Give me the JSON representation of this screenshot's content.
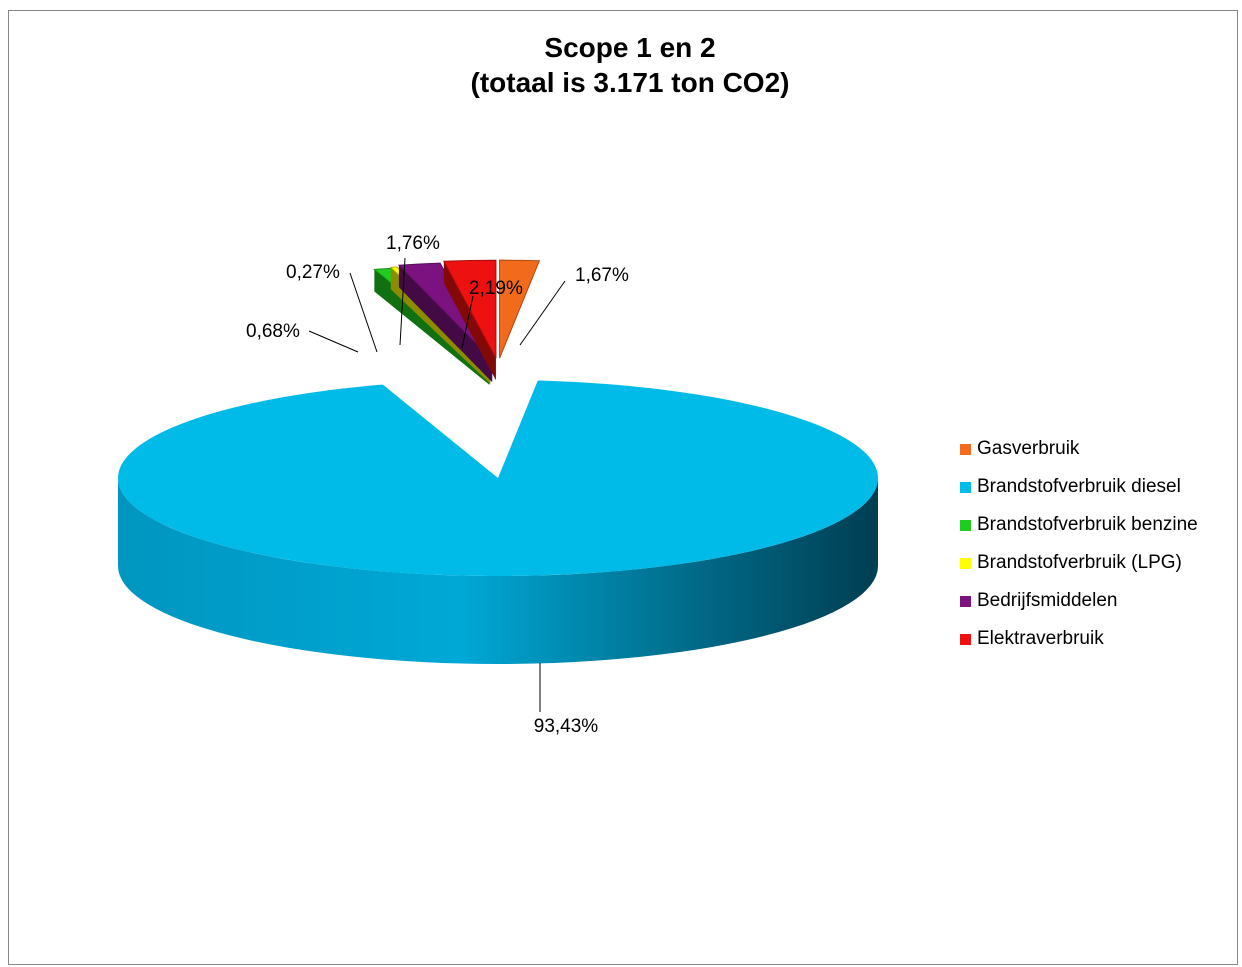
{
  "chart_data": {
    "type": "pie",
    "title_line1": "Scope 1 en 2",
    "title_line2": "(totaal is 3.171 ton CO2)",
    "slices": [
      {
        "label": "Gasverbruik",
        "value": 1.67,
        "display": "1,67%",
        "color": "#F26B1D"
      },
      {
        "label": "Brandstofverbruik diesel",
        "value": 93.43,
        "display": "93,43%",
        "color": "#00BBE8"
      },
      {
        "label": "Brandstofverbruik benzine",
        "value": 0.68,
        "display": "0,68%",
        "color": "#1FCC1F"
      },
      {
        "label": "Brandstofverbruik (LPG)",
        "value": 0.27,
        "display": "0,27%",
        "color": "#FFFF00"
      },
      {
        "label": "Bedrijfsmiddelen",
        "value": 1.76,
        "display": "1,76%",
        "color": "#7B1280"
      },
      {
        "label": "Elektraverbruik",
        "value": 2.19,
        "display": "2,19%",
        "color": "#EE1111"
      }
    ],
    "legend_position": "right",
    "style": "3d-exploded"
  }
}
